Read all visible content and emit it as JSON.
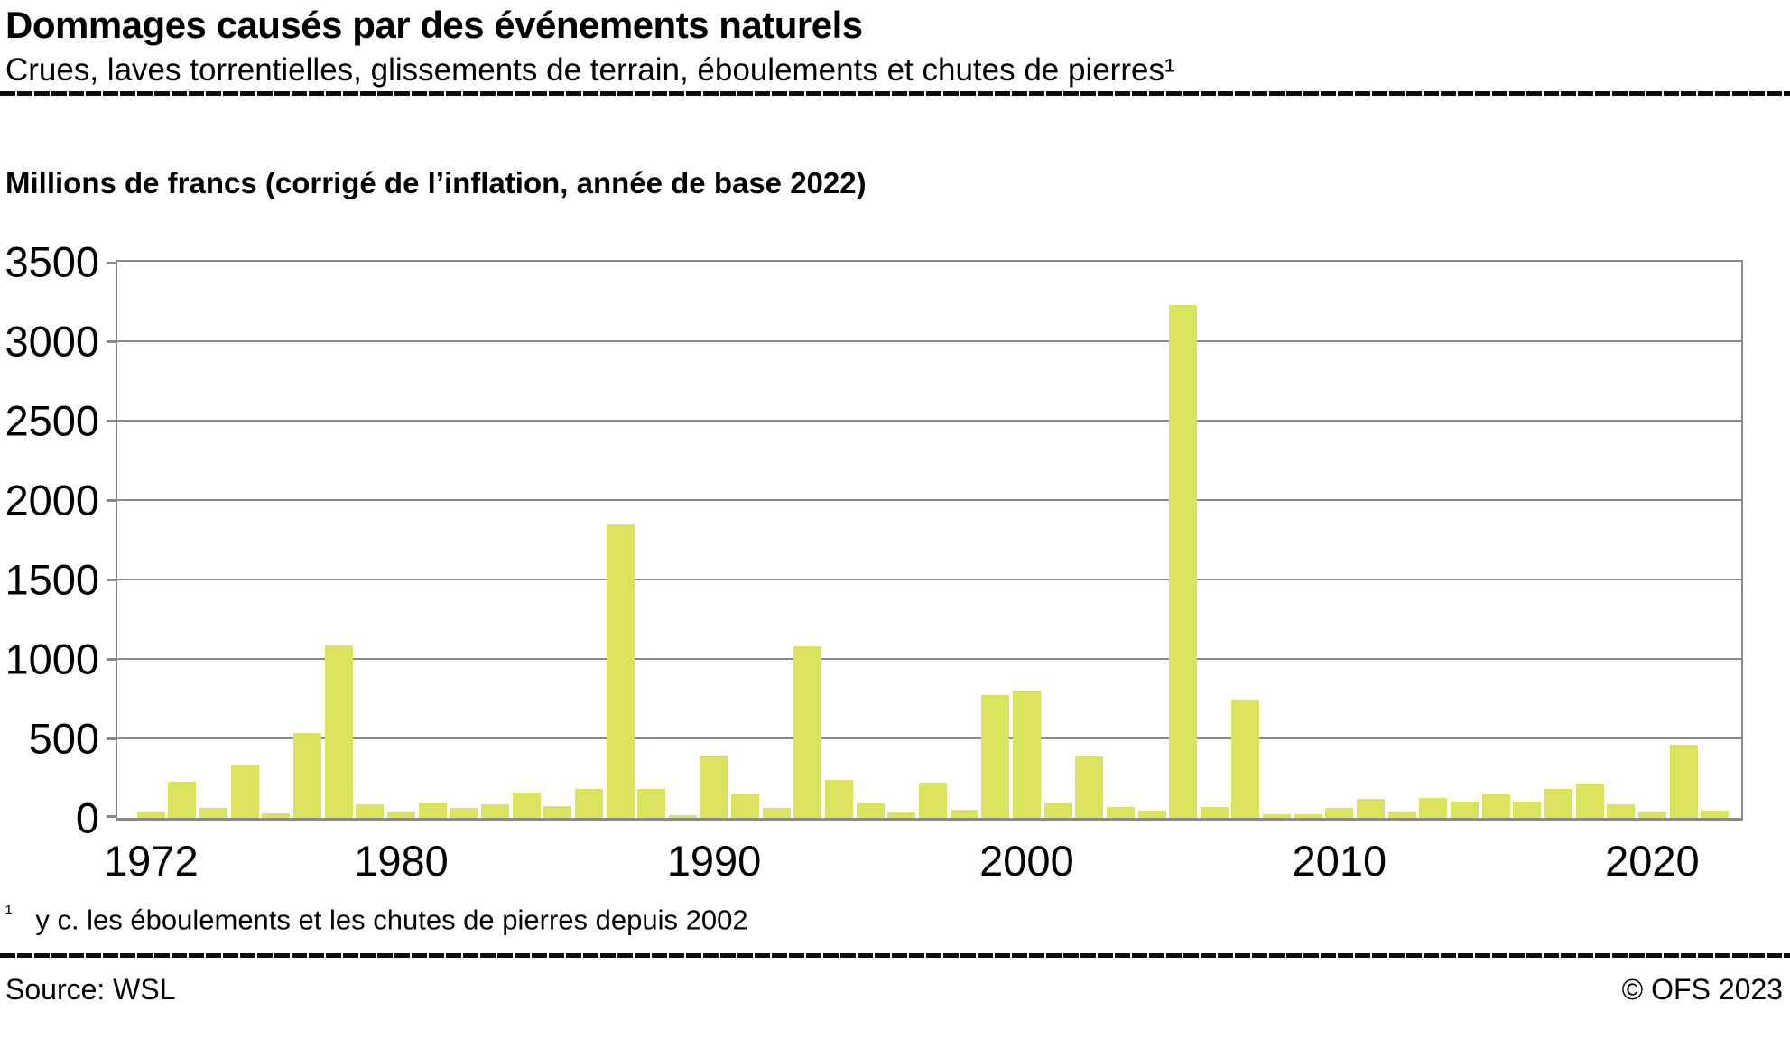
{
  "header": {
    "title": "Dommages causés par des événements naturels",
    "subtitle": "Crues, laves torrentielles, glissements de terrain, éboulements et chutes de pierres¹"
  },
  "unit_label": "Millions de francs (corrigé de l’inflation, année de base 2022)",
  "footnote": {
    "marker": "¹",
    "text": "y c. les éboulements et les chutes de pierres depuis 2002"
  },
  "footer": {
    "source": "Source: WSL",
    "copyright": "© OFS 2023"
  },
  "chart_data": {
    "type": "bar",
    "title": "Dommages causés par des événements naturels",
    "subtitle": "Crues, laves torrentielles, glissements de terrain, éboulements et chutes de pierres",
    "ylabel": "Millions de francs (corrigé de l’inflation, année de base 2022)",
    "xlabel": "",
    "ylim": [
      0,
      3500
    ],
    "y_ticks": [
      0,
      500,
      1000,
      1500,
      2000,
      2500,
      3000,
      3500
    ],
    "x_tick_labels": [
      "1972",
      "1980",
      "1990",
      "2000",
      "2010",
      "2020"
    ],
    "grid": true,
    "legend": false,
    "bar_color": "#dce45f",
    "grid_color": "#8a8a8a",
    "categories": [
      1972,
      1973,
      1974,
      1975,
      1976,
      1977,
      1978,
      1979,
      1980,
      1981,
      1982,
      1983,
      1984,
      1985,
      1986,
      1987,
      1988,
      1989,
      1990,
      1991,
      1992,
      1993,
      1994,
      1995,
      1996,
      1997,
      1998,
      1999,
      2000,
      2001,
      2002,
      2003,
      2004,
      2005,
      2006,
      2007,
      2008,
      2009,
      2010,
      2011,
      2012,
      2013,
      2014,
      2015,
      2016,
      2017,
      2018,
      2019,
      2020,
      2021,
      2022
    ],
    "values": [
      40,
      230,
      60,
      330,
      30,
      535,
      1085,
      85,
      40,
      90,
      65,
      85,
      160,
      75,
      180,
      1845,
      180,
      15,
      390,
      150,
      65,
      1080,
      240,
      90,
      35,
      220,
      50,
      775,
      800,
      90,
      385,
      70,
      45,
      3230,
      70,
      745,
      20,
      25,
      60,
      120,
      40,
      125,
      100,
      150,
      100,
      180,
      215,
      85,
      40,
      460,
      45
    ]
  }
}
